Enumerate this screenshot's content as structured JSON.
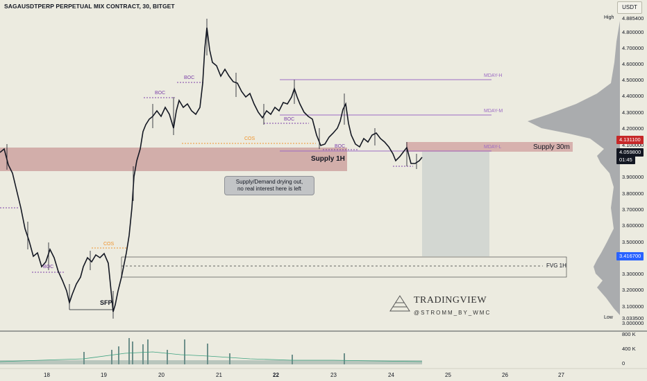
{
  "header": {
    "symbol_title": "SAGAUSDTPERP PERPETUAL MIX CONTRACT, 30, BITGET",
    "currency_button": "USDT"
  },
  "price_axis": {
    "high_label": "High",
    "high_value": "4.885400",
    "low_label": "Low",
    "low_value": "3.033500",
    "ticks": [
      "4.800000",
      "4.700000",
      "4.600000",
      "4.500000",
      "4.400000",
      "4.300000",
      "4.200000",
      "4.100000",
      "3.900000",
      "3.800000",
      "3.700000",
      "3.600000",
      "3.500000",
      "3.300000",
      "3.200000",
      "3.100000",
      "3.000000"
    ],
    "current_price": "4.059800",
    "countdown": "01:45",
    "red_marker": "4.131100",
    "blue_marker": "3.416700",
    "colors": {
      "current": "#131722",
      "red_marker": "#c62828",
      "blue_marker": "#2962ff"
    }
  },
  "volume_axis": {
    "ticks": [
      "800 K",
      "400 K",
      "0"
    ]
  },
  "time_axis": {
    "labels": [
      "18",
      "19",
      "20",
      "21",
      "22",
      "23",
      "24",
      "25",
      "26",
      "27"
    ]
  },
  "annotations": {
    "supply_1h": "Supply 1H",
    "supply_30m": "Supply 30m",
    "fvg_1h": "FVG 1H",
    "callout_line1": "Supply/Demand drying out,",
    "callout_line2": "no real interest here is left",
    "sfp": "SFP",
    "cos_labels": [
      "COS",
      "COS"
    ],
    "boc_labels": [
      "BOC",
      "BOC",
      "BOC",
      "BOC",
      "BOC"
    ],
    "mday_h": "MDAY-H",
    "mday_m": "MDAY-M",
    "mday_l": "MDAY-L"
  },
  "watermark": {
    "brand": "TRADINGVIEW",
    "author": "@STROMM_BY_WMC"
  }
}
